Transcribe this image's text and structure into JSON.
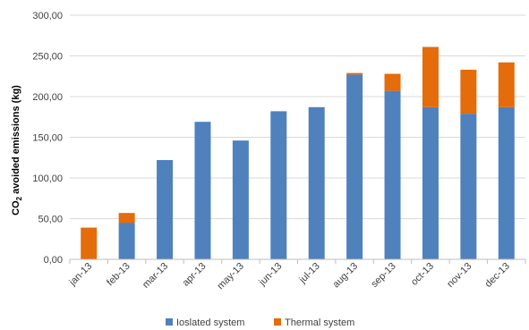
{
  "chart_data": {
    "type": "bar",
    "stacked": true,
    "categories": [
      "jan-13",
      "feb-13",
      "mar-13",
      "apr-13",
      "may-13",
      "jun-13",
      "jul-13",
      "aug-13",
      "sep-13",
      "oct-13",
      "nov-13",
      "dec-13"
    ],
    "series": [
      {
        "name": "Ioslated system",
        "color": "#4F81BD",
        "values": [
          0,
          45,
          122,
          169,
          146,
          182,
          187,
          227,
          207,
          187,
          179,
          187
        ]
      },
      {
        "name": "Thermal system",
        "color": "#E46C0A",
        "values": [
          39,
          12,
          0,
          0,
          0,
          0,
          0,
          2,
          21,
          74,
          54,
          55
        ]
      }
    ],
    "ylabel_prefix": "CO",
    "ylabel_sub": "2",
    "ylabel_suffix": " avoided emissions (kg)",
    "ylim": [
      0,
      300
    ],
    "yticks": [
      "0,00",
      "50,00",
      "100,00",
      "150,00",
      "200,00",
      "250,00",
      "300,00"
    ],
    "grid": true,
    "legend_position": "bottom"
  }
}
